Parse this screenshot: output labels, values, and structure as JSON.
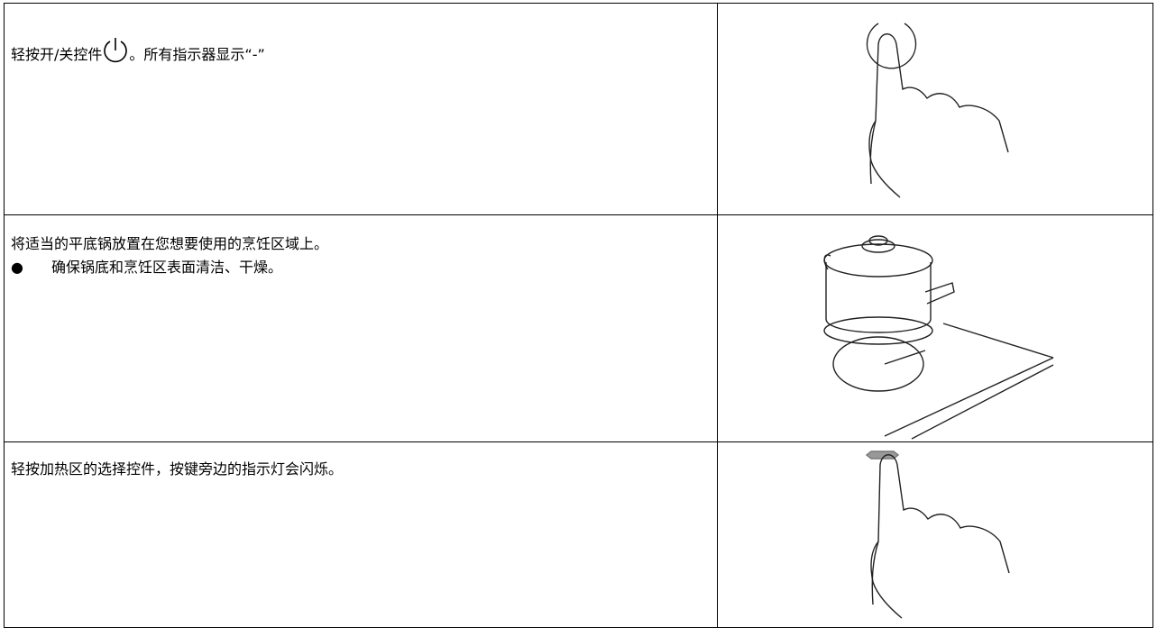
{
  "rows": [
    {
      "text": [
        "轻按开/关控件",
        "。所有指示器显示“-”"
      ]
    },
    {
      "text": "将适当的平底锅放置在您想要使用的烹饪区域上。",
      "bullets": [
        "确保锅底和烹饪区表面清洁、干燥。"
      ]
    },
    {
      "text": "轻按加热区的选择控件，按键旁边的指示灯会闪烁。"
    }
  ]
}
